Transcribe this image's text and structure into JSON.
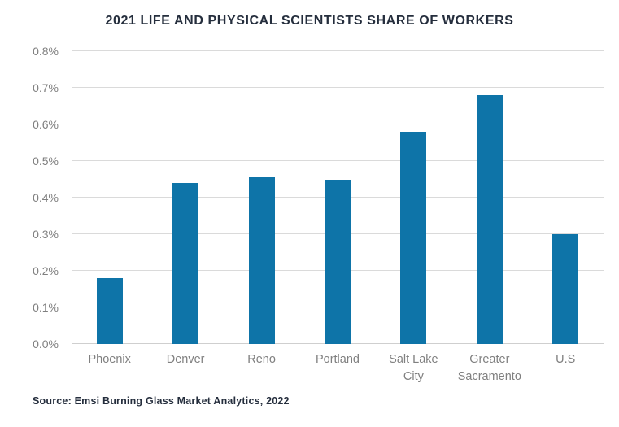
{
  "title": "2021 LIFE AND PHYSICAL SCIENTISTS SHARE OF WORKERS",
  "source": "Source: Emsi Burning Glass Market Analytics, 2022",
  "colors": {
    "bar": "#0e74a8",
    "title_text": "#252e3d",
    "axis_label": "#7f7f7f",
    "gridline": "#dadada",
    "background": "#ffffff"
  },
  "chart_data": {
    "type": "bar",
    "title": "2021 LIFE AND PHYSICAL SCIENTISTS SHARE OF WORKERS",
    "categories": [
      "Phoenix",
      "Denver",
      "Reno",
      "Portland",
      "Salt Lake City",
      "Greater Sacramento",
      "U.S"
    ],
    "values": [
      0.18,
      0.44,
      0.455,
      0.45,
      0.58,
      0.68,
      0.3
    ],
    "unit": "%",
    "xlabel": "",
    "ylabel": "",
    "ylim": [
      0,
      0.8
    ],
    "y_ticks": [
      "0.0%",
      "0.1%",
      "0.2%",
      "0.3%",
      "0.4%",
      "0.5%",
      "0.6%",
      "0.7%",
      "0.8%"
    ],
    "grid": true,
    "legend": false,
    "source": "Source: Emsi Burning Glass Market Analytics, 2022"
  }
}
